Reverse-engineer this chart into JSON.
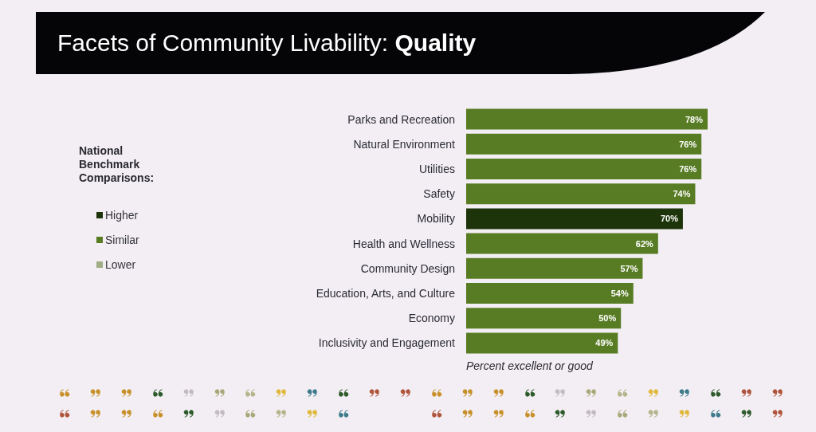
{
  "chart_data": {
    "type": "bar",
    "orientation": "horizontal",
    "stacked": true,
    "title": "Facets of Community Livability: Quality",
    "xlabel": "Percent excellent or good",
    "legend_title": "National Benchmark Comparisons:",
    "legend": "left",
    "categories": [
      "Parks and Recreation",
      "Natural Environment",
      "Utilities",
      "Safety",
      "Mobility",
      "Health and Wellness",
      "Community Design",
      "Education, Arts, and Culture",
      "Economy",
      "Inclusivity and Engagement"
    ],
    "series": [
      {
        "name": "Higher",
        "color": "#1d340a",
        "values": [
          null,
          null,
          null,
          null,
          70,
          null,
          null,
          null,
          null,
          null
        ],
        "value_labels": [
          null,
          null,
          null,
          null,
          "70%",
          null,
          null,
          null,
          null,
          null
        ]
      },
      {
        "name": "Similar",
        "color": "#587c24",
        "values": [
          78,
          76,
          76,
          74,
          null,
          62,
          57,
          54,
          50,
          49
        ],
        "value_labels": [
          "78%",
          "76%",
          "76%",
          "74%",
          null,
          "62%",
          "57%",
          "54%",
          "50%",
          "49%"
        ]
      },
      {
        "name": "Lower",
        "color": "#a1ad85",
        "values": [
          null,
          null,
          null,
          null,
          null,
          null,
          null,
          null,
          null,
          null
        ]
      }
    ]
  }
}
